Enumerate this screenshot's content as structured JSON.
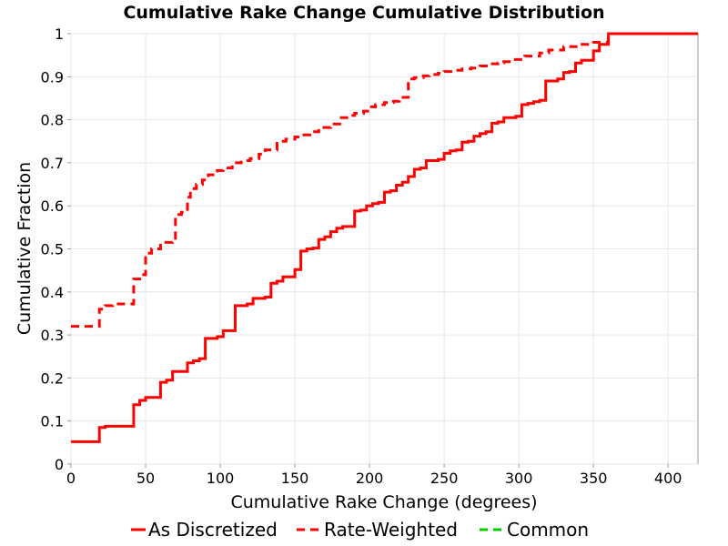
{
  "chart_data": {
    "type": "line",
    "title": "Cumulative Rake Change Cumulative Distribution",
    "xlabel": "Cumulative Rake Change (degrees)",
    "ylabel": "Cumulative Fraction",
    "xlim": [
      0,
      420
    ],
    "ylim": [
      0,
      1
    ],
    "xticks": [
      0,
      50,
      100,
      150,
      200,
      250,
      300,
      350,
      400
    ],
    "yticks": [
      0,
      0.1,
      0.2,
      0.3,
      0.4,
      0.5,
      0.6,
      0.7,
      0.8,
      0.9,
      1
    ],
    "grid": true,
    "legend_position": "bottom",
    "series": [
      {
        "name": "As Discretized",
        "color": "#ff0000",
        "dash": "solid",
        "step": true,
        "x": [
          0,
          19,
          23,
          38,
          42,
          46,
          50,
          60,
          64,
          68,
          78,
          82,
          86,
          90,
          98,
          102,
          110,
          118,
          122,
          130,
          134,
          138,
          142,
          150,
          154,
          158,
          162,
          166,
          170,
          174,
          178,
          182,
          190,
          194,
          198,
          202,
          206,
          210,
          214,
          218,
          222,
          226,
          230,
          234,
          238,
          246,
          250,
          254,
          258,
          262,
          266,
          270,
          274,
          278,
          282,
          286,
          290,
          298,
          302,
          306,
          310,
          314,
          318,
          326,
          330,
          334,
          338,
          342,
          350,
          354,
          360,
          420
        ],
        "y": [
          0.052,
          0.085,
          0.088,
          0.088,
          0.138,
          0.148,
          0.155,
          0.19,
          0.195,
          0.215,
          0.235,
          0.24,
          0.245,
          0.292,
          0.296,
          0.31,
          0.368,
          0.372,
          0.385,
          0.388,
          0.42,
          0.425,
          0.435,
          0.452,
          0.495,
          0.5,
          0.502,
          0.522,
          0.528,
          0.54,
          0.548,
          0.552,
          0.588,
          0.59,
          0.6,
          0.605,
          0.608,
          0.632,
          0.635,
          0.648,
          0.655,
          0.668,
          0.685,
          0.688,
          0.705,
          0.708,
          0.722,
          0.728,
          0.73,
          0.748,
          0.75,
          0.762,
          0.768,
          0.772,
          0.792,
          0.795,
          0.805,
          0.808,
          0.835,
          0.838,
          0.842,
          0.845,
          0.89,
          0.895,
          0.91,
          0.912,
          0.932,
          0.938,
          0.96,
          0.975,
          1.0,
          1.0
        ]
      },
      {
        "name": "Rate-Weighted",
        "color": "#ff0000",
        "dash": "dashed",
        "step": true,
        "x": [
          0,
          19,
          23,
          28,
          38,
          42,
          46,
          50,
          54,
          60,
          68,
          70,
          74,
          78,
          80,
          84,
          88,
          92,
          98,
          102,
          108,
          114,
          120,
          126,
          130,
          138,
          144,
          150,
          154,
          160,
          166,
          174,
          180,
          186,
          190,
          196,
          200,
          204,
          210,
          216,
          220,
          226,
          230,
          236,
          240,
          246,
          250,
          256,
          262,
          268,
          274,
          280,
          286,
          290,
          296,
          304,
          314,
          320,
          330,
          340,
          350,
          360,
          420
        ],
        "y": [
          0.32,
          0.36,
          0.368,
          0.372,
          0.372,
          0.43,
          0.44,
          0.49,
          0.5,
          0.515,
          0.52,
          0.58,
          0.585,
          0.62,
          0.64,
          0.65,
          0.66,
          0.672,
          0.682,
          0.688,
          0.7,
          0.705,
          0.71,
          0.72,
          0.73,
          0.75,
          0.755,
          0.76,
          0.765,
          0.772,
          0.782,
          0.79,
          0.805,
          0.81,
          0.815,
          0.82,
          0.83,
          0.835,
          0.84,
          0.843,
          0.852,
          0.895,
          0.898,
          0.902,
          0.905,
          0.908,
          0.912,
          0.915,
          0.918,
          0.92,
          0.925,
          0.93,
          0.932,
          0.935,
          0.94,
          0.948,
          0.955,
          0.962,
          0.97,
          0.975,
          0.98,
          1.0,
          1.0
        ]
      },
      {
        "name": "Common",
        "color": "#00cc00",
        "dash": "dashed",
        "step": true,
        "x": [],
        "y": []
      }
    ]
  }
}
